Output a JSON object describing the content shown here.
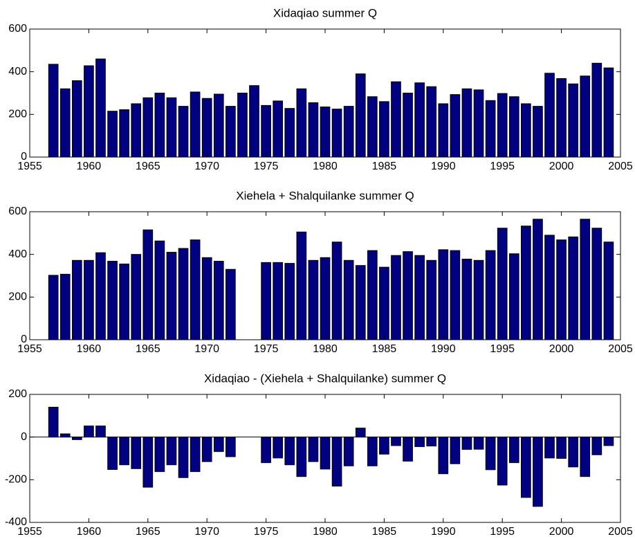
{
  "chart_data": [
    {
      "type": "bar",
      "title": "Xidaqiao summer Q",
      "x": [
        1957,
        1958,
        1959,
        1960,
        1961,
        1962,
        1963,
        1964,
        1965,
        1966,
        1967,
        1968,
        1969,
        1970,
        1971,
        1972,
        1973,
        1974,
        1975,
        1976,
        1977,
        1978,
        1979,
        1980,
        1981,
        1982,
        1983,
        1984,
        1985,
        1986,
        1987,
        1988,
        1989,
        1990,
        1991,
        1992,
        1993,
        1994,
        1995,
        1996,
        1997,
        1998,
        1999,
        2000,
        2001,
        2002,
        2003,
        2004
      ],
      "values": [
        435,
        320,
        358,
        428,
        460,
        215,
        222,
        250,
        278,
        300,
        278,
        238,
        305,
        275,
        295,
        238,
        300,
        335,
        242,
        263,
        228,
        320,
        255,
        235,
        225,
        238,
        390,
        283,
        260,
        353,
        300,
        348,
        330,
        250,
        293,
        320,
        315,
        265,
        298,
        283,
        250,
        238,
        393,
        368,
        343,
        380,
        440,
        418
      ],
      "color": "#000080",
      "xlim": [
        1955,
        2005
      ],
      "xticks": [
        1955,
        1960,
        1965,
        1970,
        1975,
        1980,
        1985,
        1990,
        1995,
        2000,
        2005
      ],
      "ylim": [
        0,
        600
      ],
      "yticks": [
        0,
        200,
        400,
        600
      ]
    },
    {
      "type": "bar",
      "title": "Xiehela + Shalquilanke summer Q",
      "x": [
        1957,
        1958,
        1959,
        1960,
        1961,
        1962,
        1963,
        1964,
        1965,
        1966,
        1967,
        1968,
        1969,
        1970,
        1971,
        1972,
        1973,
        1974,
        1975,
        1976,
        1977,
        1978,
        1979,
        1980,
        1981,
        1982,
        1983,
        1984,
        1985,
        1986,
        1987,
        1988,
        1989,
        1990,
        1991,
        1992,
        1993,
        1994,
        1995,
        1996,
        1997,
        1998,
        1999,
        2000,
        2001,
        2002,
        2003,
        2004
      ],
      "values": [
        302,
        307,
        372,
        372,
        408,
        368,
        355,
        400,
        515,
        463,
        410,
        428,
        468,
        385,
        368,
        330,
        null,
        null,
        362,
        362,
        358,
        505,
        372,
        385,
        458,
        372,
        348,
        418,
        340,
        395,
        413,
        395,
        372,
        422,
        418,
        378,
        372,
        418,
        523,
        403,
        533,
        565,
        490,
        468,
        482,
        565,
        523,
        458
      ],
      "color": "#000080",
      "xlim": [
        1955,
        2005
      ],
      "xticks": [
        1955,
        1960,
        1965,
        1970,
        1975,
        1980,
        1985,
        1990,
        1995,
        2000,
        2005
      ],
      "ylim": [
        0,
        600
      ],
      "yticks": [
        0,
        200,
        400,
        600
      ]
    },
    {
      "type": "bar",
      "title": "Xidaqiao - (Xiehela + Shalquilanke) summer Q",
      "x": [
        1957,
        1958,
        1959,
        1960,
        1961,
        1962,
        1963,
        1964,
        1965,
        1966,
        1967,
        1968,
        1969,
        1970,
        1971,
        1972,
        1973,
        1974,
        1975,
        1976,
        1977,
        1978,
        1979,
        1980,
        1981,
        1982,
        1983,
        1984,
        1985,
        1986,
        1987,
        1988,
        1989,
        1990,
        1991,
        1992,
        1993,
        1994,
        1995,
        1996,
        1997,
        1998,
        1999,
        2000,
        2001,
        2002,
        2003,
        2004
      ],
      "values": [
        140,
        15,
        -12,
        52,
        52,
        -152,
        -130,
        -148,
        -235,
        -162,
        -130,
        -190,
        -162,
        -115,
        -68,
        -92,
        null,
        null,
        -120,
        -98,
        -130,
        -185,
        -115,
        -150,
        -230,
        -135,
        42,
        -135,
        -80,
        -40,
        -113,
        -45,
        -42,
        -172,
        -125,
        -58,
        -57,
        -153,
        -225,
        -120,
        -283,
        -325,
        -98,
        -100,
        -140,
        -185,
        -83,
        -40
      ],
      "color": "#000080",
      "xlim": [
        1955,
        2005
      ],
      "xticks": [
        1955,
        1960,
        1965,
        1970,
        1975,
        1980,
        1985,
        1990,
        1995,
        2000,
        2005
      ],
      "ylim": [
        -400,
        200
      ],
      "yticks": [
        -400,
        -200,
        0,
        200
      ]
    }
  ]
}
